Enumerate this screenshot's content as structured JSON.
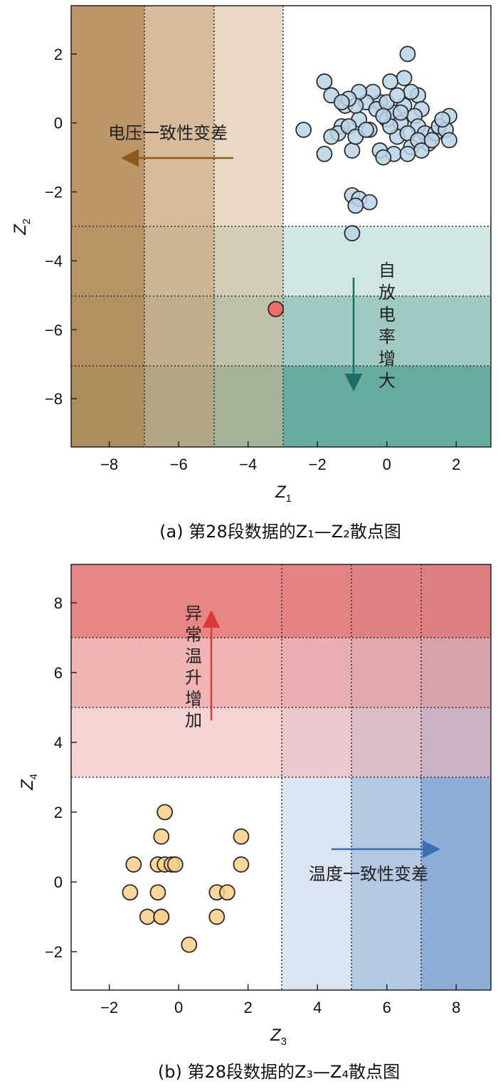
{
  "chart_data": [
    {
      "type": "scatter",
      "panel": "a",
      "caption": "(a) 第28段数据的Z₁—Z₂散点图",
      "xlabel": "Z",
      "xlabel_sub": "1",
      "ylabel": "Z",
      "ylabel_sub": "2",
      "xlim": [
        -9.1,
        3.0
      ],
      "ylim": [
        -9.4,
        3.4
      ],
      "xticks": [
        "−8",
        "−6",
        "−4",
        "−2",
        "0",
        "2"
      ],
      "yticks": [
        "−8",
        "−6",
        "−4",
        "−2",
        "0",
        "2"
      ],
      "xtick_values": [
        -8,
        -6,
        -4,
        -2,
        0,
        2
      ],
      "ytick_values": [
        -8,
        -6,
        -4,
        -2,
        0,
        2
      ],
      "annotations": {
        "horizontal": "电压一致性变差",
        "vertical": "自放电率增大"
      },
      "colors": {
        "normal_point": "#b9d3e8",
        "anomaly_point": "#f26b6b",
        "brown": "#a67840",
        "teal": "#2f8a7d"
      },
      "thresholds_x": [
        -7,
        -5,
        -3
      ],
      "thresholds_y": [
        -3,
        -5,
        -7
      ],
      "series": [
        {
          "name": "",
          "color": "#b9d3e8",
          "points": [
            [
              0.6,
              2.0
            ],
            [
              0.5,
              1.3
            ],
            [
              -1.8,
              1.2
            ],
            [
              -1.6,
              0.8
            ],
            [
              0.9,
              0.8
            ],
            [
              1.0,
              0.4
            ],
            [
              0.1,
              1.2
            ],
            [
              -1.2,
              0.5
            ],
            [
              -2.4,
              -0.2
            ],
            [
              -1.3,
              -0.1
            ],
            [
              -1.8,
              -0.9
            ],
            [
              -1.0,
              -0.8
            ],
            [
              -0.8,
              0.1
            ],
            [
              -0.5,
              -0.2
            ],
            [
              -0.2,
              0.6
            ],
            [
              0.0,
              0.1
            ],
            [
              0.2,
              0.3
            ],
            [
              0.4,
              0.0
            ],
            [
              0.5,
              0.5
            ],
            [
              0.7,
              0.9
            ],
            [
              0.8,
              0.2
            ],
            [
              0.9,
              -0.1
            ],
            [
              1.1,
              -0.3
            ],
            [
              1.2,
              -0.6
            ],
            [
              1.4,
              -0.3
            ],
            [
              1.5,
              -0.1
            ],
            [
              1.7,
              -0.2
            ],
            [
              1.8,
              0.2
            ],
            [
              1.8,
              -0.5
            ],
            [
              0.3,
              -0.4
            ],
            [
              0.6,
              -0.3
            ],
            [
              0.7,
              -0.7
            ],
            [
              0.9,
              -0.5
            ],
            [
              1.0,
              -0.8
            ],
            [
              0.2,
              -0.9
            ],
            [
              0.6,
              -0.9
            ],
            [
              -0.2,
              -0.8
            ],
            [
              -0.4,
              0.9
            ],
            [
              -0.6,
              0.6
            ],
            [
              -0.8,
              0.9
            ],
            [
              -0.9,
              0.5
            ],
            [
              -1.1,
              0.7
            ],
            [
              -1.3,
              0.6
            ],
            [
              -1.4,
              -0.3
            ],
            [
              -1.6,
              -0.4
            ],
            [
              -1.1,
              -0.1
            ],
            [
              -0.9,
              -0.4
            ],
            [
              -0.6,
              -0.2
            ],
            [
              -0.3,
              0.4
            ],
            [
              0.0,
              0.6
            ],
            [
              0.3,
              0.8
            ],
            [
              0.4,
              0.3
            ],
            [
              0.1,
              -0.1
            ],
            [
              -0.1,
              0.2
            ],
            [
              1.3,
              -0.5
            ],
            [
              1.6,
              0.1
            ],
            [
              -0.1,
              -1.0
            ],
            [
              -1.0,
              -2.1
            ],
            [
              -0.8,
              -2.2
            ],
            [
              -0.5,
              -2.3
            ],
            [
              -0.9,
              -2.4
            ],
            [
              -1.0,
              -3.2
            ]
          ]
        },
        {
          "name": "",
          "color": "#f26b6b",
          "points": [
            [
              -3.2,
              -5.4
            ]
          ]
        }
      ]
    },
    {
      "type": "scatter",
      "panel": "b",
      "caption": "(b) 第28段数据的Z₃—Z₄散点图",
      "xlabel": "Z",
      "xlabel_sub": "3",
      "ylabel": "Z",
      "ylabel_sub": "4",
      "xlim": [
        -3.1,
        9.0
      ],
      "ylim": [
        -3.1,
        9.1
      ],
      "xticks": [
        "−2",
        "0",
        "2",
        "4",
        "6",
        "8"
      ],
      "yticks": [
        "−2",
        "0",
        "2",
        "4",
        "6",
        "8"
      ],
      "xtick_values": [
        -2,
        0,
        2,
        4,
        6,
        8
      ],
      "ytick_values": [
        -2,
        0,
        2,
        4,
        6,
        8
      ],
      "annotations": {
        "vertical": "异常温升增加",
        "horizontal": "温度一致性变差"
      },
      "colors": {
        "point": "#f9cf88",
        "red": "#e06060",
        "blue": "#4d7fbf"
      },
      "thresholds_x": [
        3,
        5,
        7
      ],
      "thresholds_y": [
        3,
        5,
        7
      ],
      "series": [
        {
          "name": "",
          "color": "#f9cf88",
          "points": [
            [
              -0.4,
              2.0
            ],
            [
              -0.5,
              1.3
            ],
            [
              1.8,
              1.3
            ],
            [
              -1.3,
              0.5
            ],
            [
              -0.6,
              0.5
            ],
            [
              -0.4,
              0.5
            ],
            [
              -0.2,
              0.5
            ],
            [
              -0.1,
              0.5
            ],
            [
              1.8,
              0.5
            ],
            [
              -1.4,
              -0.3
            ],
            [
              -0.6,
              -0.3
            ],
            [
              1.1,
              -0.3
            ],
            [
              1.4,
              -0.3
            ],
            [
              -0.9,
              -1.0
            ],
            [
              -0.5,
              -1.0
            ],
            [
              -0.5,
              -1.0
            ],
            [
              1.1,
              -1.0
            ],
            [
              0.3,
              -1.8
            ]
          ]
        }
      ]
    }
  ]
}
